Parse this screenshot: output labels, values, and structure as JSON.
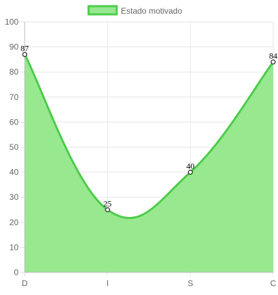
{
  "chart_data": {
    "type": "area",
    "categories": [
      "D",
      "I",
      "S",
      "C"
    ],
    "series": [
      {
        "name": "Estado motivado",
        "values": [
          87,
          25,
          40,
          84
        ]
      }
    ],
    "ylim": [
      0,
      100
    ],
    "yticks": [
      0,
      10,
      20,
      30,
      40,
      50,
      60,
      70,
      80,
      90,
      100
    ],
    "grid": true,
    "legend_position": "top",
    "data_labels": true,
    "fill_color": "#98e890",
    "line_color": "#4ccc4a",
    "point_fill": "#ffffff",
    "point_stroke": "#222222"
  }
}
